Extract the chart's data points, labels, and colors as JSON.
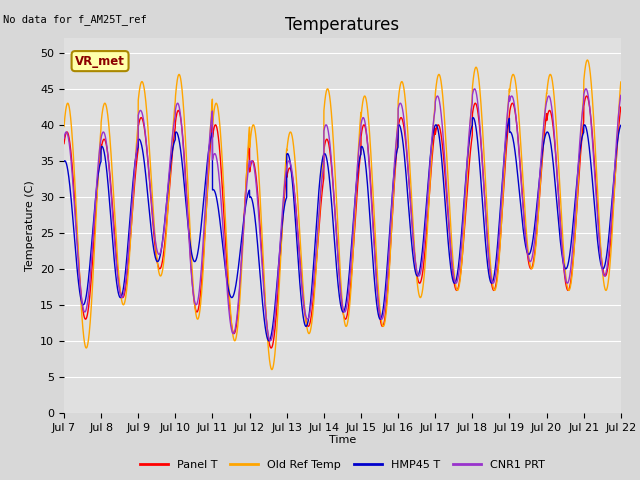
{
  "title": "Temperatures",
  "xlabel": "Time",
  "ylabel": "Temperature (C)",
  "note": "No data for f_AM25T_ref",
  "annotation": "VR_met",
  "ylim": [
    0,
    52
  ],
  "yticks": [
    0,
    5,
    10,
    15,
    20,
    25,
    30,
    35,
    40,
    45,
    50
  ],
  "xtick_labels": [
    "Jul 7",
    "Jul 8",
    "Jul 9",
    "Jul 10",
    "Jul 11",
    "Jul 12",
    "Jul 13",
    "Jul 14",
    "Jul 15",
    "Jul 16",
    "Jul 17",
    "Jul 18",
    "Jul 19",
    "Jul 20",
    "Jul 21",
    "Jul 22"
  ],
  "series": [
    {
      "label": "Panel T",
      "color": "#ff0000",
      "lw": 1.0
    },
    {
      "label": "Old Ref Temp",
      "color": "#ffa500",
      "lw": 1.0
    },
    {
      "label": "HMP45 T",
      "color": "#0000cc",
      "lw": 1.0
    },
    {
      "label": "CNR1 PRT",
      "color": "#9933cc",
      "lw": 1.0
    }
  ],
  "bg_color": "#e0e0e0",
  "fig_bg_color": "#d8d8d8",
  "grid_color": "#ffffff",
  "legend_fontsize": 8,
  "title_fontsize": 12,
  "axis_fontsize": 8,
  "annotation_facecolor": "#ffffaa",
  "annotation_edgecolor": "#aa8800"
}
